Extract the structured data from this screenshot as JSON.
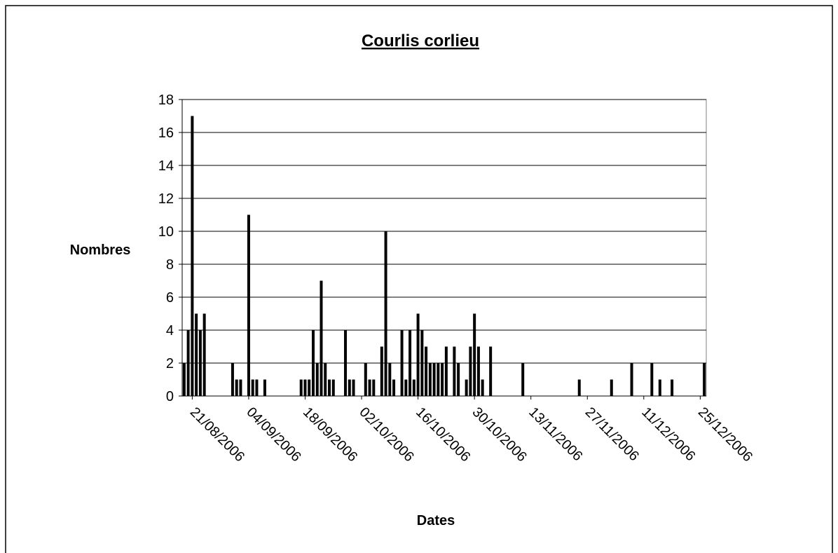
{
  "chart_data": {
    "type": "bar",
    "title": "Courlis corlieu",
    "x_label": "Dates",
    "y_label": "Nombres",
    "color": "#000000",
    "grid": true,
    "x": [
      "2006-08-19",
      "2006-08-20",
      "2006-08-21",
      "2006-08-22",
      "2006-08-23",
      "2006-08-24",
      "2006-08-31",
      "2006-09-01",
      "2006-09-02",
      "2006-09-04",
      "2006-09-05",
      "2006-09-06",
      "2006-09-08",
      "2006-09-17",
      "2006-09-18",
      "2006-09-19",
      "2006-09-20",
      "2006-09-21",
      "2006-09-22",
      "2006-09-23",
      "2006-09-24",
      "2006-09-25",
      "2006-09-28",
      "2006-09-29",
      "2006-09-30",
      "2006-10-03",
      "2006-10-04",
      "2006-10-05",
      "2006-10-07",
      "2006-10-08",
      "2006-10-09",
      "2006-10-10",
      "2006-10-12",
      "2006-10-13",
      "2006-10-14",
      "2006-10-15",
      "2006-10-16",
      "2006-10-17",
      "2006-10-18",
      "2006-10-19",
      "2006-10-20",
      "2006-10-21",
      "2006-10-22",
      "2006-10-23",
      "2006-10-25",
      "2006-10-26",
      "2006-10-28",
      "2006-10-29",
      "2006-10-30",
      "2006-10-31",
      "2006-11-01",
      "2006-11-03",
      "2006-11-11",
      "2006-11-25",
      "2006-12-03",
      "2006-12-08",
      "2006-12-13",
      "2006-12-15",
      "2006-12-18",
      "2006-12-26"
    ],
    "values": [
      2,
      4,
      17,
      5,
      4,
      5,
      2,
      1,
      1,
      11,
      1,
      1,
      1,
      1,
      1,
      1,
      4,
      2,
      7,
      2,
      1,
      1,
      4,
      1,
      1,
      2,
      1,
      1,
      3,
      10,
      2,
      1,
      4,
      1,
      4,
      1,
      5,
      4,
      3,
      2,
      2,
      2,
      2,
      3,
      3,
      2,
      1,
      3,
      5,
      3,
      1,
      3,
      2,
      1,
      1,
      2,
      2,
      1,
      1,
      2
    ],
    "xlim": [
      "2006-08-19",
      "2006-12-26"
    ],
    "xticks": [
      {
        "value": "2006-08-21",
        "label": "21/08/2006"
      },
      {
        "value": "2006-09-04",
        "label": "04/09/2006"
      },
      {
        "value": "2006-09-18",
        "label": "18/09/2006"
      },
      {
        "value": "2006-10-02",
        "label": "02/10/2006"
      },
      {
        "value": "2006-10-16",
        "label": "16/10/2006"
      },
      {
        "value": "2006-10-30",
        "label": "30/10/2006"
      },
      {
        "value": "2006-11-13",
        "label": "13/11/2006"
      },
      {
        "value": "2006-11-27",
        "label": "27/11/2006"
      },
      {
        "value": "2006-12-11",
        "label": "11/12/2006"
      },
      {
        "value": "2006-12-25",
        "label": "25/12/2006"
      }
    ],
    "ylim": [
      0,
      18
    ],
    "yticks": [
      0,
      2,
      4,
      6,
      8,
      10,
      12,
      14,
      16,
      18
    ]
  }
}
